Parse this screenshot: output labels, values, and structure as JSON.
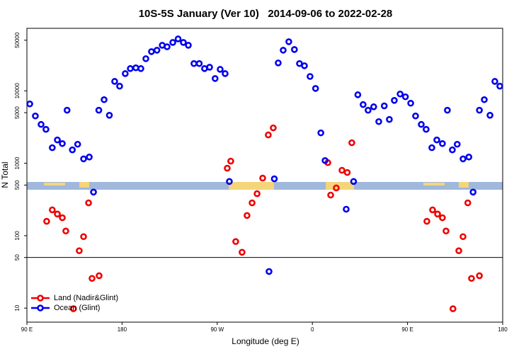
{
  "chart_data": {
    "type": "scatter",
    "title": "10S-5S January (Ver 10)   2014-09-06 to 2022-02-28",
    "x_label": "Longitude (deg E)",
    "y_label": "N Total",
    "log_y": true,
    "hline": 50,
    "legend": "bottom-left",
    "xlim": [
      90,
      540
    ],
    "ylim": [
      6.4,
      73000
    ],
    "xticks": [
      {
        "value": 90,
        "label": "90 E"
      },
      {
        "value": 180,
        "label": "180"
      },
      {
        "value": 270,
        "label": "90 W"
      },
      {
        "value": 360,
        "label": "0"
      },
      {
        "value": 450,
        "label": "90 E"
      },
      {
        "value": 540,
        "label": "180"
      }
    ],
    "yticks": [
      10,
      50,
      100,
      500,
      1000,
      5000,
      10000,
      50000
    ],
    "series": [
      {
        "name": "Land (Nadir&Glint)",
        "color": "#ee0000",
        "x": [
          108.7,
          114,
          118.8,
          123.5,
          126.8,
          134,
          139.5,
          143.6,
          148.3,
          151.6,
          158.3,
          279.5,
          282.8,
          287.5,
          293.5,
          298.2,
          303,
          307.7,
          313,
          318.3,
          323,
          374.6,
          377.3,
          382.6,
          388,
          393,
          397.3,
          468.3,
          473.7,
          478.4,
          483,
          486.4,
          493,
          498.5,
          502.5,
          507,
          510.5,
          518
        ],
        "values": [
          158,
          227,
          199,
          177,
          116,
          9.8,
          62,
          97,
          284,
          25.7,
          28,
          855,
          1070,
          83,
          59,
          190,
          284,
          380,
          624,
          2460,
          3080,
          1020,
          364,
          456,
          800,
          746,
          1920,
          158,
          227,
          199,
          177,
          116,
          9.8,
          62,
          97,
          284,
          25.7,
          28
        ]
      },
      {
        "name": "Ocean (Glint)",
        "color": "#0000ee",
        "x": [
          92.7,
          98,
          103.4,
          108,
          114,
          118.8,
          123.5,
          128,
          133,
          138,
          143.6,
          149,
          153,
          158,
          163,
          168,
          173,
          177.7,
          183,
          187.8,
          193,
          197.8,
          202.5,
          207.8,
          213,
          218,
          222.6,
          228,
          233,
          238,
          242.7,
          248,
          253,
          258,
          262.8,
          268,
          272.8,
          277.5,
          281.5,
          319,
          324,
          327.7,
          332.4,
          337.7,
          343,
          347.8,
          352.5,
          357.8,
          363,
          368,
          372,
          392,
          399,
          403,
          408,
          412.7,
          418,
          422.8,
          428,
          432.8,
          437.5,
          443,
          448,
          453,
          457.6,
          463,
          467.6,
          473,
          477.7,
          483,
          487.7,
          492.4,
          497,
          502.5,
          508,
          512,
          518,
          522.6,
          528,
          532.6,
          537.3
        ],
        "values": [
          6600,
          4500,
          3440,
          2940,
          1640,
          2100,
          1870,
          5400,
          1530,
          1830,
          1150,
          1220,
          400,
          5400,
          7550,
          4600,
          13500,
          11600,
          17300,
          20300,
          20800,
          20300,
          27800,
          34800,
          36400,
          42600,
          40600,
          46600,
          52100,
          46600,
          42600,
          23800,
          23800,
          20300,
          21200,
          14800,
          19800,
          17300,
          560,
          32,
          610,
          24300,
          36400,
          47700,
          37200,
          23800,
          22200,
          15800,
          10800,
          2630,
          1090,
          232,
          560,
          8830,
          6460,
          5400,
          6020,
          3760,
          6200,
          4030,
          7380,
          9040,
          8270,
          6750,
          4500,
          3440,
          2940,
          1640,
          2100,
          1870,
          5400,
          1530,
          1830,
          1150,
          1220,
          400,
          5400,
          7550,
          4600,
          13500,
          11600
        ]
      }
    ]
  }
}
